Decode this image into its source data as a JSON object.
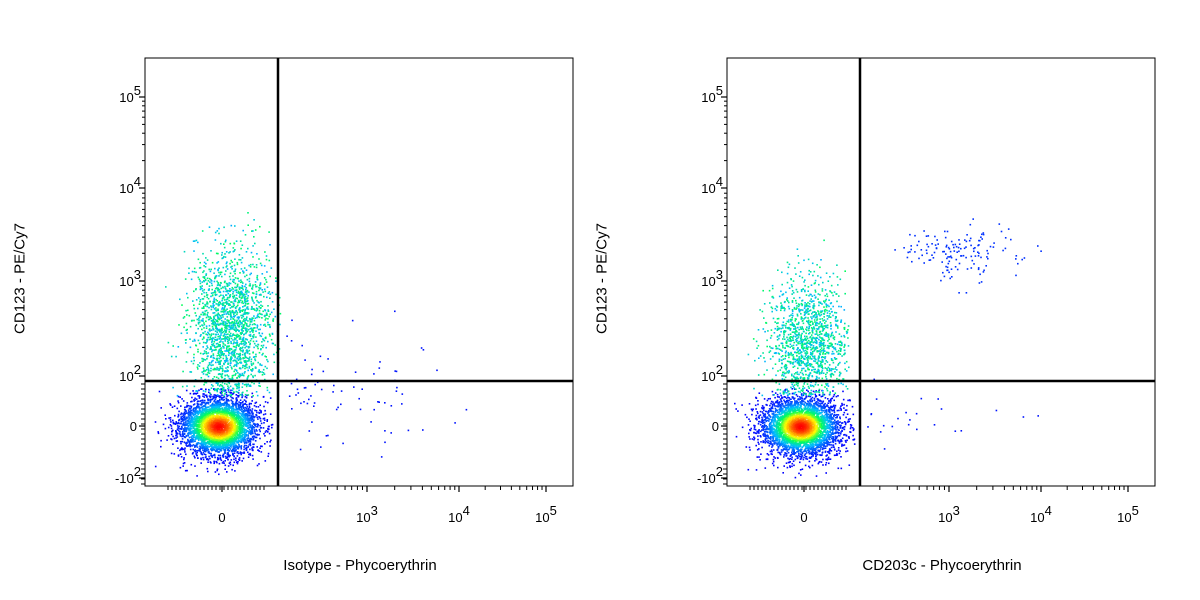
{
  "chart_data": [
    {
      "type": "scatter",
      "subtype": "flow-cytometry-density-dot-plot",
      "title": "",
      "xlabel": "Isotype - Phycoerythrin",
      "ylabel": "CD123 - PE/Cy7",
      "x_scale": "biexponential",
      "y_scale": "biexponential",
      "x_ticks": [
        {
          "base": "0",
          "exp": ""
        },
        {
          "base": "10",
          "exp": "3"
        },
        {
          "base": "10",
          "exp": "4"
        },
        {
          "base": "10",
          "exp": "5"
        }
      ],
      "y_ticks": [
        {
          "base": "10",
          "exp": "5"
        },
        {
          "base": "10",
          "exp": "4"
        },
        {
          "base": "10",
          "exp": "3"
        },
        {
          "base": "10",
          "exp": "2"
        },
        {
          "base": "0",
          "exp": ""
        },
        {
          "base": "-10",
          "exp": "2"
        }
      ],
      "quadrant_gate": {
        "x": 150,
        "y": 80
      },
      "populations": [
        {
          "name": "",
          "x_center": 0,
          "y_center": 0,
          "n": 4500,
          "dense": true
        },
        {
          "name": "",
          "x_center": 0,
          "y_center": 600,
          "n": 1800,
          "dense": false
        }
      ],
      "colormap": [
        "#0000ff",
        "#00c0ff",
        "#00ff60",
        "#ffff00",
        "#ff8000",
        "#ff0000"
      ]
    },
    {
      "type": "scatter",
      "subtype": "flow-cytometry-density-dot-plot",
      "title": "",
      "xlabel": "CD203c - Phycoerythrin",
      "ylabel": "CD123 - PE/Cy7",
      "x_scale": "biexponential",
      "y_scale": "biexponential",
      "x_ticks": [
        {
          "base": "0",
          "exp": ""
        },
        {
          "base": "10",
          "exp": "3"
        },
        {
          "base": "10",
          "exp": "4"
        },
        {
          "base": "10",
          "exp": "5"
        }
      ],
      "y_ticks": [
        {
          "base": "10",
          "exp": "5"
        },
        {
          "base": "10",
          "exp": "4"
        },
        {
          "base": "10",
          "exp": "3"
        },
        {
          "base": "10",
          "exp": "2"
        },
        {
          "base": "0",
          "exp": ""
        },
        {
          "base": "-10",
          "exp": "2"
        }
      ],
      "quadrant_gate": {
        "x": 150,
        "y": 80
      },
      "populations": [
        {
          "name": "",
          "x_center": 0,
          "y_center": 0,
          "n": 4300,
          "dense": true
        },
        {
          "name": "",
          "x_center": 0,
          "y_center": 300,
          "n": 1300,
          "dense": false
        },
        {
          "name": "",
          "x_center": 1500,
          "y_center": 2000,
          "n": 150,
          "dense": false
        }
      ],
      "colormap": [
        "#0000ff",
        "#00c0ff",
        "#00ff60",
        "#ffff00",
        "#ff8000",
        "#ff0000"
      ]
    }
  ]
}
